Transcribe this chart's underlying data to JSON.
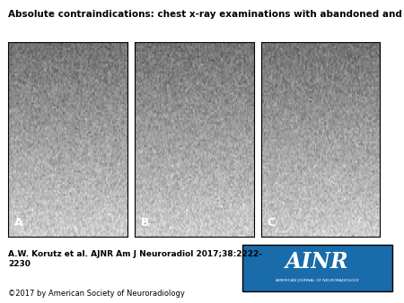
{
  "title": "Absolute contraindications: chest x-ray examinations with abandoned and epicardial leads.",
  "title_fontsize": 7.5,
  "title_bold": true,
  "citation": "A.W. Korutz et al. AJNR Am J Neuroradiol 2017;38:2222-\n2230",
  "citation_fontsize": 6.5,
  "copyright": "©2017 by American Society of Neuroradiology",
  "copyright_fontsize": 6.0,
  "panel_labels": [
    "A",
    "B",
    "C"
  ],
  "panel_label_fontsize": 9,
  "bg_color": "#ffffff",
  "panel_bg": "#d0d0d0",
  "ainr_box_color": "#1a6baa",
  "ainr_text": "AINR",
  "ainr_subtext": "AMERICAN JOURNAL OF NEURORADIOLOGY",
  "figure_width": 4.5,
  "figure_height": 3.38,
  "dpi": 100
}
